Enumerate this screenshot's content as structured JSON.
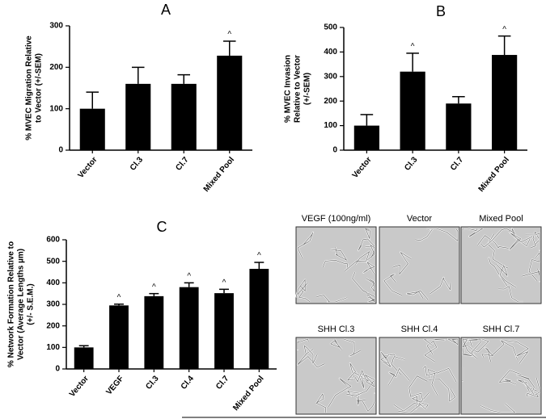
{
  "chart_data": [
    {
      "type": "bar",
      "title": "A",
      "ylabel": [
        "% MVEC Migration Relative",
        "to Vector (+/-SEM)"
      ],
      "categories": [
        "Vector",
        "Cl.3",
        "Cl.7",
        "Mixed Pool"
      ],
      "values": [
        100,
        160,
        160,
        228
      ],
      "errors": [
        40,
        40,
        22,
        35
      ],
      "color": "#000000",
      "ylim": [
        0,
        300
      ],
      "yticks": [
        0,
        100,
        200,
        300
      ],
      "annotations": [
        {
          "x": "Mixed Pool",
          "text": "^"
        }
      ]
    },
    {
      "type": "bar",
      "title": "B",
      "ylabel": [
        "% MVEC Invasion",
        "Relative to Vector",
        "(+/-SEM)"
      ],
      "categories": [
        "Vector",
        "Cl.3",
        "Cl.7",
        "Mixed Pool"
      ],
      "values": [
        100,
        320,
        190,
        388
      ],
      "errors": [
        45,
        75,
        28,
        77
      ],
      "color": "#000000",
      "ylim": [
        0,
        500
      ],
      "yticks": [
        0,
        100,
        200,
        300,
        400,
        500
      ],
      "annotations": [
        {
          "x": "Cl.3",
          "text": "^"
        },
        {
          "x": "Mixed Pool",
          "text": "^"
        }
      ]
    },
    {
      "type": "bar",
      "title": "C",
      "ylabel": [
        "% Network Formation Relative to",
        "Vector (Average Lengths µm)",
        "(+/- S.E.M.)"
      ],
      "categories": [
        "Vector",
        "VEGF",
        "Cl.3",
        "Cl.4",
        "Cl.7",
        "Mixed Pool"
      ],
      "values": [
        100,
        295,
        338,
        380,
        352,
        465
      ],
      "errors": [
        8,
        6,
        12,
        20,
        18,
        30
      ],
      "color": "#000000",
      "ylim": [
        0,
        600
      ],
      "yticks": [
        0,
        100,
        200,
        300,
        400,
        500,
        600
      ],
      "annotations": [
        {
          "x": "VEGF",
          "text": "^"
        },
        {
          "x": "Cl.3",
          "text": "^"
        },
        {
          "x": "Cl.4",
          "text": "^"
        },
        {
          "x": "Cl.7",
          "text": "^"
        },
        {
          "x": "Mixed Pool",
          "text": "^"
        }
      ]
    }
  ],
  "panels": [
    "VEGF (100ng/ml)",
    "Vector",
    "Mixed Pool",
    "SHH Cl.3",
    "SHH Cl.4",
    "SHH Cl.7"
  ]
}
